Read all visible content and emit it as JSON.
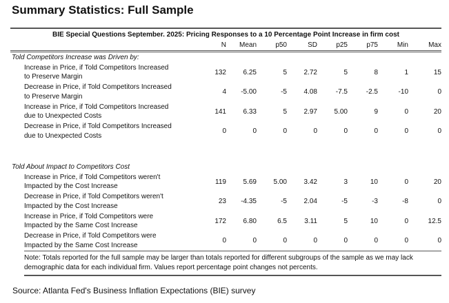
{
  "title": "Summary Statistics: Full Sample",
  "table": {
    "caption": "BIE Special Questions September. 2025: Pricing Responses to a 10 Percentage Point Increase in firm cost",
    "columns": [
      "N",
      "Mean",
      "p50",
      "SD",
      "p25",
      "p75",
      "Min",
      "Max"
    ],
    "sections": [
      {
        "label": "Told Competitors Increase was Driven by:",
        "rows": [
          {
            "label": [
              "Increase in Price, if Told Competitors Increased",
              "to Preserve Margin"
            ],
            "values": [
              "132",
              "6.25",
              "5",
              "2.72",
              "5",
              "8",
              "1",
              "15"
            ]
          },
          {
            "label": [
              "Decrease in Price, if Told Competitors Increased",
              "to Preserve Margin"
            ],
            "values": [
              "4",
              "-5.00",
              "-5",
              "4.08",
              "-7.5",
              "-2.5",
              "-10",
              "0"
            ]
          },
          {
            "label": [
              "Increase in Price, if Told Competitors Increased",
              "due to Unexpected Costs"
            ],
            "values": [
              "141",
              "6.33",
              "5",
              "2.97",
              "5.00",
              "9",
              "0",
              "20"
            ]
          },
          {
            "label": [
              "Decrease in Price, if Told Competitors Increased",
              "due to Unexpected Costs"
            ],
            "values": [
              "0",
              "0",
              "0",
              "0",
              "0",
              "0",
              "0",
              "0"
            ]
          }
        ]
      },
      {
        "label": "Told About Impact to Competitors Cost",
        "rows": [
          {
            "label": [
              "Increase in Price, if Told Competitors weren't",
              "Impacted by the Cost Increase"
            ],
            "values": [
              "119",
              "5.69",
              "5.00",
              "3.42",
              "3",
              "10",
              "0",
              "20"
            ]
          },
          {
            "label": [
              "Decrease in Price, if Told Competitors weren't",
              "Impacted by the Cost Increase"
            ],
            "values": [
              "23",
              "-4.35",
              "-5",
              "2.04",
              "-5",
              "-3",
              "-8",
              "0"
            ]
          },
          {
            "label": [
              "Increase in Price, if Told Competitors were",
              "Impacted by the Same Cost Increase"
            ],
            "values": [
              "172",
              "6.80",
              "6.5",
              "3.11",
              "5",
              "10",
              "0",
              "12.5"
            ]
          },
          {
            "label": [
              "Decrease in Price, if Told Competitors were",
              "Impacted by the Same Cost Increase"
            ],
            "values": [
              "0",
              "0",
              "0",
              "0",
              "0",
              "0",
              "0",
              "0"
            ]
          }
        ]
      }
    ],
    "note": "Note: Totals reported for the full sample may be larger than totals reported for different subgroups of the sample as we may lack demographic data for each individual firm. Values report percentage point changes not percents."
  },
  "source": "Source: Atlanta Fed's Business Inflation Expectations (BIE) survey"
}
